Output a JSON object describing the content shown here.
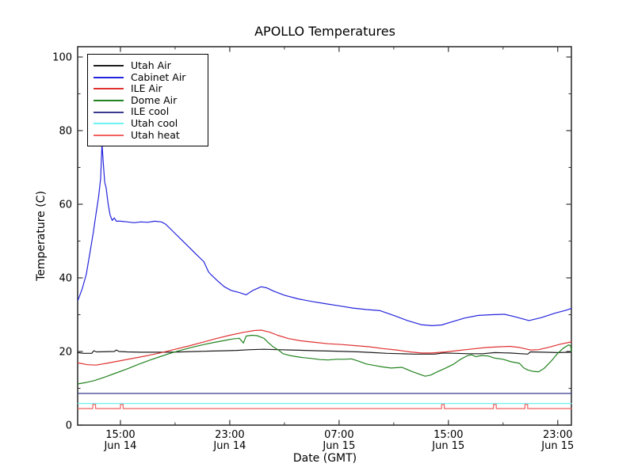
{
  "chart_data": {
    "type": "line",
    "title": "APOLLO Temperatures",
    "xlabel": "Date (GMT)",
    "ylabel": "Temperature (C)",
    "ylim": [
      0,
      100
    ],
    "grid": false,
    "legend_position": "upper left",
    "x_unit": "hours since Jun 14 00:00 GMT",
    "x_range_hours": [
      11.87,
      48.0
    ],
    "y_major_ticks": [
      0,
      20,
      40,
      60,
      80,
      100
    ],
    "y_minor_ticks": [
      10,
      30,
      50,
      70,
      90
    ],
    "x_major_ticks": [
      {
        "hour": 15,
        "time": "15:00",
        "date": "Jun 14"
      },
      {
        "hour": 23,
        "time": "23:00",
        "date": "Jun 14"
      },
      {
        "hour": 31,
        "time": "07:00",
        "date": "Jun 15"
      },
      {
        "hour": 39,
        "time": "15:00",
        "date": "Jun 15"
      },
      {
        "hour": 47,
        "time": "23:00",
        "date": "Jun 15"
      }
    ],
    "x_minor_ticks_hours": [
      19,
      27,
      35,
      43
    ],
    "series": [
      {
        "name": "Utah Air",
        "color": "#1c1c1c",
        "points": [
          [
            11.9,
            19.7
          ],
          [
            12.3,
            19.5
          ],
          [
            12.9,
            19.5
          ],
          [
            13.05,
            20.2
          ],
          [
            13.25,
            19.9
          ],
          [
            14.55,
            20.0
          ],
          [
            14.7,
            20.4
          ],
          [
            14.9,
            20.0
          ],
          [
            15.5,
            19.9
          ],
          [
            16.5,
            19.8
          ],
          [
            17.5,
            19.8
          ],
          [
            18.5,
            19.8
          ],
          [
            19.5,
            19.9
          ],
          [
            20.5,
            20.0
          ],
          [
            21.5,
            20.1
          ],
          [
            22.5,
            20.2
          ],
          [
            23.5,
            20.3
          ],
          [
            24.5,
            20.5
          ],
          [
            25.5,
            20.6
          ],
          [
            26.5,
            20.5
          ],
          [
            27.5,
            20.4
          ],
          [
            28.5,
            20.3
          ],
          [
            29.5,
            20.2
          ],
          [
            30.5,
            20.1
          ],
          [
            31.5,
            20.0
          ],
          [
            32.5,
            19.9
          ],
          [
            33.5,
            19.7
          ],
          [
            34.5,
            19.5
          ],
          [
            35.5,
            19.4
          ],
          [
            36.5,
            19.3
          ],
          [
            37.5,
            19.3
          ],
          [
            38.0,
            19.3
          ],
          [
            38.6,
            19.6
          ],
          [
            39.5,
            19.5
          ],
          [
            40.5,
            19.4
          ],
          [
            41.5,
            19.4
          ],
          [
            42.4,
            19.7
          ],
          [
            43.5,
            19.6
          ],
          [
            44.8,
            19.3
          ],
          [
            45.0,
            19.9
          ],
          [
            46.0,
            19.8
          ],
          [
            47.0,
            19.7
          ],
          [
            48.0,
            19.8
          ]
        ]
      },
      {
        "name": "Cabinet Air",
        "color": "#2424dd",
        "points": [
          [
            11.9,
            34.0
          ],
          [
            12.2,
            37.0
          ],
          [
            12.5,
            41.0
          ],
          [
            12.8,
            47.5
          ],
          [
            13.0,
            52.0
          ],
          [
            13.2,
            57.0
          ],
          [
            13.4,
            62.0
          ],
          [
            13.55,
            67.0
          ],
          [
            13.65,
            76.5
          ],
          [
            13.75,
            71.0
          ],
          [
            13.85,
            66.0
          ],
          [
            13.95,
            64.5
          ],
          [
            14.1,
            60.0
          ],
          [
            14.25,
            57.0
          ],
          [
            14.4,
            55.6
          ],
          [
            14.55,
            56.3
          ],
          [
            14.7,
            55.4
          ],
          [
            15.0,
            55.4
          ],
          [
            15.5,
            55.2
          ],
          [
            16.0,
            55.0
          ],
          [
            16.5,
            55.2
          ],
          [
            17.0,
            55.1
          ],
          [
            17.5,
            55.4
          ],
          [
            18.0,
            55.2
          ],
          [
            18.3,
            54.6
          ],
          [
            18.8,
            52.8
          ],
          [
            19.4,
            50.6
          ],
          [
            20.0,
            48.4
          ],
          [
            20.6,
            46.2
          ],
          [
            21.1,
            44.4
          ],
          [
            21.45,
            41.6
          ],
          [
            21.6,
            41.0
          ],
          [
            22.1,
            39.2
          ],
          [
            22.6,
            37.6
          ],
          [
            23.1,
            36.6
          ],
          [
            23.7,
            36.0
          ],
          [
            24.2,
            35.4
          ],
          [
            24.7,
            36.6
          ],
          [
            25.3,
            37.6
          ],
          [
            25.7,
            37.3
          ],
          [
            26.2,
            36.4
          ],
          [
            27.0,
            35.3
          ],
          [
            28.0,
            34.3
          ],
          [
            29.0,
            33.6
          ],
          [
            30.0,
            33.0
          ],
          [
            31.0,
            32.4
          ],
          [
            32.0,
            31.8
          ],
          [
            33.0,
            31.4
          ],
          [
            34.0,
            31.1
          ],
          [
            35.0,
            29.8
          ],
          [
            36.0,
            28.4
          ],
          [
            37.0,
            27.3
          ],
          [
            37.8,
            27.0
          ],
          [
            38.5,
            27.2
          ],
          [
            39.3,
            28.1
          ],
          [
            40.2,
            29.1
          ],
          [
            41.2,
            29.8
          ],
          [
            42.2,
            30.0
          ],
          [
            43.1,
            30.1
          ],
          [
            43.8,
            29.5
          ],
          [
            44.9,
            28.4
          ],
          [
            45.8,
            29.2
          ],
          [
            46.8,
            30.4
          ],
          [
            47.6,
            31.2
          ],
          [
            48.0,
            31.7
          ]
        ]
      },
      {
        "name": "ILE Air",
        "color": "#e03131",
        "points": [
          [
            11.9,
            16.9
          ],
          [
            12.6,
            16.4
          ],
          [
            13.2,
            16.3
          ],
          [
            14.0,
            16.8
          ],
          [
            15.0,
            17.5
          ],
          [
            16.0,
            18.2
          ],
          [
            17.0,
            18.9
          ],
          [
            18.0,
            19.7
          ],
          [
            19.0,
            20.6
          ],
          [
            20.0,
            21.5
          ],
          [
            21.0,
            22.5
          ],
          [
            22.0,
            23.5
          ],
          [
            23.0,
            24.4
          ],
          [
            24.0,
            25.2
          ],
          [
            24.8,
            25.7
          ],
          [
            25.3,
            25.8
          ],
          [
            25.9,
            25.3
          ],
          [
            26.5,
            24.4
          ],
          [
            27.3,
            23.5
          ],
          [
            28.2,
            22.9
          ],
          [
            29.2,
            22.5
          ],
          [
            30.2,
            22.1
          ],
          [
            31.2,
            21.9
          ],
          [
            32.2,
            21.6
          ],
          [
            33.2,
            21.3
          ],
          [
            34.2,
            20.8
          ],
          [
            35.2,
            20.4
          ],
          [
            36.2,
            19.9
          ],
          [
            37.0,
            19.6
          ],
          [
            37.8,
            19.6
          ],
          [
            38.8,
            19.9
          ],
          [
            39.8,
            20.3
          ],
          [
            40.8,
            20.7
          ],
          [
            41.8,
            21.1
          ],
          [
            42.8,
            21.3
          ],
          [
            43.5,
            21.4
          ],
          [
            44.2,
            21.1
          ],
          [
            45.0,
            20.4
          ],
          [
            45.6,
            20.5
          ],
          [
            46.4,
            21.2
          ],
          [
            47.2,
            22.0
          ],
          [
            48.0,
            22.6
          ]
        ]
      },
      {
        "name": "Dome Air",
        "color": "#22831f",
        "points": [
          [
            11.9,
            11.2
          ],
          [
            12.5,
            11.6
          ],
          [
            13.1,
            12.1
          ],
          [
            13.9,
            13.1
          ],
          [
            14.7,
            14.2
          ],
          [
            15.5,
            15.3
          ],
          [
            16.3,
            16.5
          ],
          [
            17.1,
            17.6
          ],
          [
            17.9,
            18.6
          ],
          [
            18.7,
            19.6
          ],
          [
            19.5,
            20.4
          ],
          [
            20.3,
            21.2
          ],
          [
            21.1,
            21.9
          ],
          [
            21.9,
            22.5
          ],
          [
            22.6,
            23.0
          ],
          [
            23.2,
            23.4
          ],
          [
            23.7,
            23.6
          ],
          [
            24.0,
            22.3
          ],
          [
            24.2,
            24.2
          ],
          [
            24.6,
            24.4
          ],
          [
            25.0,
            24.3
          ],
          [
            25.3,
            23.9
          ],
          [
            25.5,
            23.6
          ],
          [
            25.8,
            22.5
          ],
          [
            26.2,
            21.2
          ],
          [
            26.6,
            20.3
          ],
          [
            26.9,
            19.4
          ],
          [
            27.4,
            18.9
          ],
          [
            28.2,
            18.4
          ],
          [
            29.0,
            18.1
          ],
          [
            29.6,
            17.8
          ],
          [
            30.2,
            17.7
          ],
          [
            30.8,
            17.9
          ],
          [
            31.4,
            17.9
          ],
          [
            31.9,
            18.0
          ],
          [
            32.4,
            17.4
          ],
          [
            33.0,
            16.6
          ],
          [
            33.6,
            16.2
          ],
          [
            34.2,
            15.8
          ],
          [
            34.8,
            15.5
          ],
          [
            35.6,
            15.7
          ],
          [
            36.3,
            14.6
          ],
          [
            36.9,
            13.8
          ],
          [
            37.3,
            13.3
          ],
          [
            37.7,
            13.6
          ],
          [
            38.2,
            14.5
          ],
          [
            38.8,
            15.5
          ],
          [
            39.4,
            16.6
          ],
          [
            39.9,
            17.9
          ],
          [
            40.4,
            18.9
          ],
          [
            40.7,
            19.1
          ],
          [
            41.0,
            18.6
          ],
          [
            41.4,
            18.9
          ],
          [
            41.9,
            18.8
          ],
          [
            42.4,
            18.2
          ],
          [
            43.0,
            17.9
          ],
          [
            43.6,
            17.2
          ],
          [
            44.2,
            16.8
          ],
          [
            44.5,
            15.6
          ],
          [
            44.8,
            15.0
          ],
          [
            45.2,
            14.6
          ],
          [
            45.6,
            14.5
          ],
          [
            46.0,
            15.4
          ],
          [
            46.5,
            17.3
          ],
          [
            47.0,
            19.5
          ],
          [
            47.4,
            20.9
          ],
          [
            47.8,
            21.8
          ],
          [
            47.95,
            21.5
          ],
          [
            48.0,
            19.9
          ]
        ]
      },
      {
        "name": "ILE cool",
        "color": "#3b3b8f",
        "points": [
          [
            11.9,
            8.6
          ],
          [
            48.0,
            8.6
          ]
        ]
      },
      {
        "name": "Utah cool",
        "color": "#6ff2f2",
        "points": [
          [
            11.9,
            5.9
          ],
          [
            48.0,
            5.9
          ]
        ]
      },
      {
        "name": "Utah heat",
        "color": "#f26060",
        "points": [
          [
            11.9,
            4.5
          ],
          [
            12.98,
            4.5
          ],
          [
            12.98,
            5.6
          ],
          [
            13.18,
            5.6
          ],
          [
            13.18,
            4.5
          ],
          [
            15.0,
            4.5
          ],
          [
            15.0,
            5.6
          ],
          [
            15.2,
            5.6
          ],
          [
            15.2,
            4.5
          ],
          [
            38.5,
            4.5
          ],
          [
            38.5,
            5.6
          ],
          [
            38.7,
            5.6
          ],
          [
            38.7,
            4.5
          ],
          [
            42.3,
            4.5
          ],
          [
            42.3,
            5.6
          ],
          [
            42.5,
            5.6
          ],
          [
            42.5,
            4.5
          ],
          [
            44.6,
            4.5
          ],
          [
            44.6,
            5.6
          ],
          [
            44.8,
            5.6
          ],
          [
            44.8,
            4.5
          ],
          [
            48.0,
            4.5
          ]
        ]
      }
    ]
  }
}
